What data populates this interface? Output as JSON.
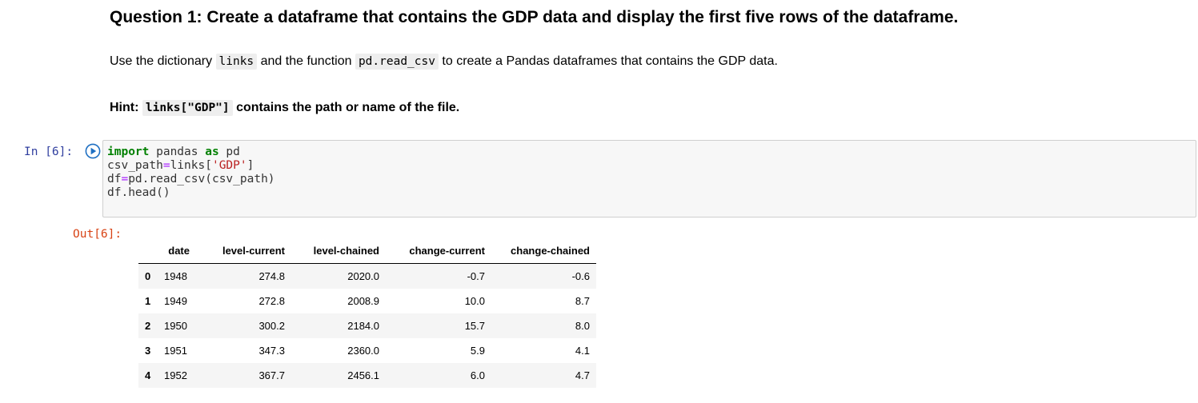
{
  "markdown": {
    "title": "Question 1: Create a dataframe that contains the GDP data and display the first five rows of the dataframe.",
    "para": {
      "prefix": "Use the dictionary ",
      "code1": "links",
      "middle": " and the function ",
      "code2": "pd.read_csv",
      "suffix": " to create a Pandas dataframes that contains the GDP data."
    },
    "hint": {
      "label": "Hint: ",
      "code": "links[\"GDP\"]",
      "text": " contains the path or name of the file."
    }
  },
  "code_cell": {
    "prompt": "In [6]:",
    "run_icon": "play-circle-icon",
    "lines": [
      {
        "kw1": "import",
        "t1": " pandas ",
        "kw2": "as",
        "t2": " pd"
      },
      {
        "t1": "csv_path",
        "op": "=",
        "t2": "links[",
        "str": "'GDP'",
        "t3": "]"
      },
      {
        "t1": "df",
        "op": "=",
        "t2": "pd.read_csv(csv_path)"
      },
      {
        "t1": "df.head()"
      }
    ]
  },
  "output": {
    "prompt": "Out[6]:",
    "columns": [
      "",
      "date",
      "level-current",
      "level-chained",
      "change-current",
      "change-chained"
    ],
    "rows": [
      {
        "index": "0",
        "date": "1948",
        "level_current": "274.8",
        "level_chained": "2020.0",
        "change_current": "-0.7",
        "change_chained": "-0.6"
      },
      {
        "index": "1",
        "date": "1949",
        "level_current": "272.8",
        "level_chained": "2008.9",
        "change_current": "10.0",
        "change_chained": "8.7"
      },
      {
        "index": "2",
        "date": "1950",
        "level_current": "300.2",
        "level_chained": "2184.0",
        "change_current": "15.7",
        "change_chained": "8.0"
      },
      {
        "index": "3",
        "date": "1951",
        "level_current": "347.3",
        "level_chained": "2360.0",
        "change_current": "5.9",
        "change_chained": "4.1"
      },
      {
        "index": "4",
        "date": "1952",
        "level_current": "367.7",
        "level_chained": "2456.1",
        "change_current": "6.0",
        "change_chained": "4.7"
      }
    ]
  }
}
